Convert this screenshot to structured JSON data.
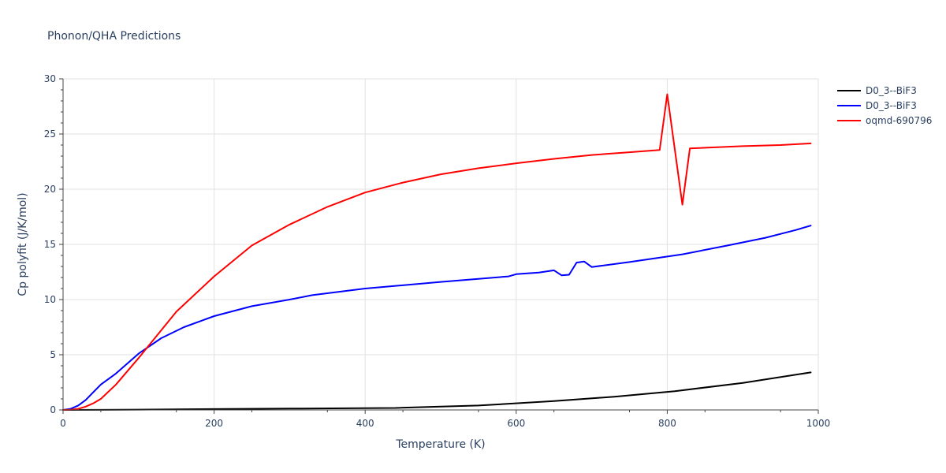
{
  "chart_data": {
    "type": "line",
    "title": "Phonon/QHA Predictions",
    "xlabel": "Temperature (K)",
    "ylabel": "Cp polyfit (J/K/mol)",
    "xlim": [
      0,
      1000
    ],
    "ylim": [
      0,
      30
    ],
    "xticks": [
      0,
      200,
      400,
      600,
      800,
      1000
    ],
    "xtick_labels": [
      "0",
      "200",
      "400",
      "600",
      "800",
      "1000"
    ],
    "yticks": [
      0,
      5,
      10,
      15,
      20,
      25,
      30
    ],
    "ytick_labels": [
      "0",
      "5",
      "10",
      "15",
      "20",
      "25",
      "30"
    ],
    "grid": true,
    "legend_position": "top-right",
    "series": [
      {
        "name": "D0_3--BiF3",
        "color": "#000000",
        "x": [
          0,
          50,
          100,
          200,
          300,
          440,
          550,
          650,
          730,
          810,
          900,
          990
        ],
        "y": [
          0,
          0.01,
          0.03,
          0.08,
          0.12,
          0.18,
          0.4,
          0.8,
          1.2,
          1.7,
          2.45,
          3.4
        ]
      },
      {
        "name": "D0_3--BiF3",
        "color": "#0000ff",
        "x": [
          0,
          10,
          20,
          30,
          40,
          50,
          70,
          100,
          130,
          160,
          200,
          250,
          300,
          330,
          400,
          500,
          590,
          600,
          630,
          650,
          660,
          670,
          680,
          690,
          700,
          750,
          820,
          880,
          930,
          970,
          990
        ],
        "y": [
          0,
          0.1,
          0.4,
          0.9,
          1.6,
          2.3,
          3.3,
          5.1,
          6.5,
          7.5,
          8.5,
          9.4,
          10.0,
          10.4,
          11.0,
          11.6,
          12.1,
          12.3,
          12.45,
          12.65,
          12.2,
          12.25,
          13.35,
          13.45,
          12.95,
          13.4,
          14.1,
          14.9,
          15.6,
          16.3,
          16.7
        ]
      },
      {
        "name": "oqmd-690796",
        "color": "#ff0000",
        "x": [
          0,
          10,
          20,
          30,
          40,
          50,
          70,
          100,
          150,
          200,
          250,
          300,
          350,
          400,
          450,
          500,
          550,
          600,
          650,
          700,
          750,
          790,
          800,
          820,
          830,
          900,
          950,
          990
        ],
        "y": [
          0,
          0.02,
          0.1,
          0.3,
          0.6,
          1.0,
          2.3,
          4.7,
          8.9,
          12.1,
          14.9,
          16.8,
          18.4,
          19.7,
          20.6,
          21.35,
          21.9,
          22.35,
          22.75,
          23.1,
          23.35,
          23.55,
          28.6,
          18.6,
          23.7,
          23.9,
          24.0,
          24.15
        ]
      }
    ]
  }
}
